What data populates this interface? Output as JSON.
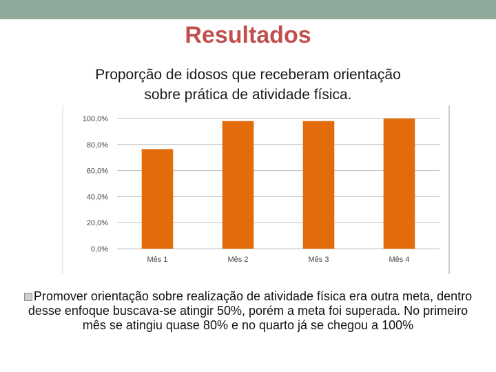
{
  "slide": {
    "title": "Resultados",
    "title_color": "#c0504d",
    "top_bar_color": "#8faa9a"
  },
  "chart_title": {
    "line1": "Proporção de idosos que receberam orientação",
    "line2": "sobre prática de atividade física."
  },
  "chart_data": {
    "type": "bar",
    "categories": [
      "Mês 1",
      "Mês 2",
      "Mês 3",
      "Mês 4"
    ],
    "values": [
      76.5,
      98.0,
      98.0,
      100.0
    ],
    "ylim": [
      0,
      100
    ],
    "yticks": [
      "0,0%",
      "20,0%",
      "40,0%",
      "60,0%",
      "80,0%",
      "100,0%"
    ],
    "bar_color": "#e36c0a",
    "grid": true,
    "legend": "none"
  },
  "bullet": {
    "icon": "q-bullet-icon",
    "text": "Promover orientação sobre realização de atividade física era outra meta, dentro desse enfoque buscava-se atingir 50%, porém a meta foi superada. No primeiro mês se atingiu quase 80% e no quarto já se chegou a 100%"
  }
}
